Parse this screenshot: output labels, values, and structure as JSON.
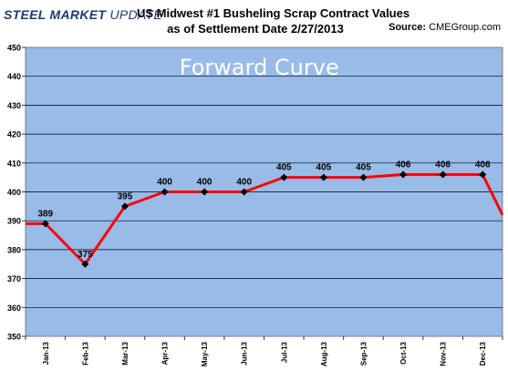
{
  "logo": {
    "part1": "STEEL MARKET",
    "part2": " UPDATE"
  },
  "header": {
    "title_line1": "US Midwest #1 Busheling Scrap Contract Values",
    "title_line2": "as of Settlement Date 2/27/2013",
    "source_label": "Source:",
    "source_value": " CMEGroup.com"
  },
  "chart_data": {
    "type": "line",
    "title": "Forward Curve",
    "categories": [
      "Jan-13",
      "Feb-13",
      "Mar-13",
      "Apr-13",
      "May-13",
      "Jun-13",
      "Jul-13",
      "Aug-13",
      "Sep-13",
      "Oct-13",
      "Nov-13",
      "Dec-13"
    ],
    "series": [
      {
        "values": [
          389,
          375,
          395,
          400,
          400,
          400,
          405,
          405,
          405,
          406,
          406,
          406
        ]
      }
    ],
    "ylim": [
      350,
      450
    ],
    "yticks": [
      350,
      360,
      370,
      380,
      390,
      400,
      410,
      420,
      430,
      440,
      450
    ],
    "grid": true,
    "data_labels": true,
    "colors": {
      "plot_bg": "#99bbe8",
      "line": "#ff0000",
      "marker": "#000000",
      "title_text": "#ffffff",
      "gridline": "#000000"
    }
  }
}
